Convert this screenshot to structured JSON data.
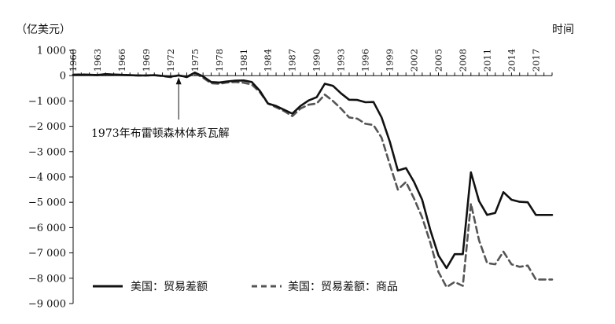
{
  "chart_data": {
    "type": "line",
    "ylabel": "（亿美元）",
    "xlabel": "时间",
    "ylim": [
      -9000,
      1000
    ],
    "xlim": [
      1960,
      2019
    ],
    "yticks": [
      1000,
      0,
      -1000,
      -2000,
      -3000,
      -4000,
      -5000,
      -6000,
      -7000,
      -8000,
      -9000
    ],
    "ytick_labels": [
      "1 000",
      "0",
      "−1 000",
      "−2 000",
      "−3 000",
      "−4 000",
      "−5 000",
      "−6 000",
      "−7 000",
      "−8 000",
      "−9 000"
    ],
    "xticks": [
      1960,
      1963,
      1966,
      1969,
      1972,
      1975,
      1978,
      1981,
      1984,
      1987,
      1990,
      1993,
      1996,
      1999,
      2002,
      2005,
      2008,
      2011,
      2014,
      2017
    ],
    "xtick_labels": [
      "1960",
      "1963",
      "1966",
      "1969",
      "1972",
      "1975",
      "1978",
      "1981",
      "1984",
      "1987",
      "1990",
      "1993",
      "1996",
      "1999",
      "2002",
      "2005",
      "2008",
      "2011",
      "2014",
      "2017"
    ],
    "grid": false,
    "legend_position": "bottom",
    "annotation": {
      "text": "1973年布雷顿森林体系瓦解",
      "x": 1973,
      "y": 0
    },
    "series": [
      {
        "name": "美国：贸易差额",
        "style": "solid",
        "color": "#111111",
        "x": [
          1960,
          1961,
          1962,
          1963,
          1964,
          1965,
          1966,
          1967,
          1968,
          1969,
          1970,
          1971,
          1972,
          1973,
          1974,
          1975,
          1976,
          1977,
          1978,
          1979,
          1980,
          1981,
          1982,
          1983,
          1984,
          1985,
          1986,
          1987,
          1988,
          1989,
          1990,
          1991,
          1992,
          1993,
          1994,
          1995,
          1996,
          1997,
          1998,
          1999,
          2000,
          2001,
          2002,
          2003,
          2004,
          2005,
          2006,
          2007,
          2008,
          2009,
          2010,
          2011,
          2012,
          2013,
          2014,
          2015,
          2016,
          2017,
          2018,
          2019
        ],
        "values": [
          30,
          40,
          35,
          25,
          60,
          45,
          30,
          20,
          10,
          5,
          20,
          -10,
          -40,
          10,
          -50,
          120,
          -30,
          -250,
          -270,
          -230,
          -200,
          -190,
          -250,
          -600,
          -1100,
          -1200,
          -1350,
          -1500,
          -1200,
          -980,
          -850,
          -320,
          -400,
          -700,
          -950,
          -960,
          -1050,
          -1040,
          -1650,
          -2600,
          -3750,
          -3650,
          -4200,
          -4900,
          -6100,
          -7100,
          -7600,
          -7050,
          -7050,
          -3820,
          -4950,
          -5500,
          -5420,
          -4600,
          -4900,
          -4980,
          -5000,
          -5500,
          -5500,
          -5500
        ]
      },
      {
        "name": "美国：贸易差额：商品",
        "style": "dashed",
        "color": "#555555",
        "x": [
          1960,
          1961,
          1962,
          1963,
          1964,
          1965,
          1966,
          1967,
          1968,
          1969,
          1970,
          1971,
          1972,
          1973,
          1974,
          1975,
          1976,
          1977,
          1978,
          1979,
          1980,
          1981,
          1982,
          1983,
          1984,
          1985,
          1986,
          1987,
          1988,
          1989,
          1990,
          1991,
          1992,
          1993,
          1994,
          1995,
          1996,
          1997,
          1998,
          1999,
          2000,
          2001,
          2002,
          2003,
          2004,
          2005,
          2006,
          2007,
          2008,
          2009,
          2010,
          2011,
          2012,
          2013,
          2014,
          2015,
          2016,
          2017,
          2018,
          2019
        ],
        "values": [
          40,
          50,
          35,
          20,
          60,
          40,
          30,
          20,
          5,
          10,
          20,
          -20,
          -60,
          10,
          -60,
          90,
          -80,
          -300,
          -320,
          -270,
          -250,
          -280,
          -350,
          -650,
          -1100,
          -1250,
          -1400,
          -1600,
          -1300,
          -1150,
          -1100,
          -750,
          -1000,
          -1300,
          -1650,
          -1700,
          -1900,
          -1950,
          -2450,
          -3500,
          -4500,
          -4200,
          -4850,
          -5600,
          -6600,
          -7750,
          -8350,
          -8150,
          -8300,
          -5050,
          -6500,
          -7400,
          -7450,
          -6950,
          -7450,
          -7550,
          -7500,
          -8050,
          -8050,
          -8050
        ]
      }
    ]
  }
}
